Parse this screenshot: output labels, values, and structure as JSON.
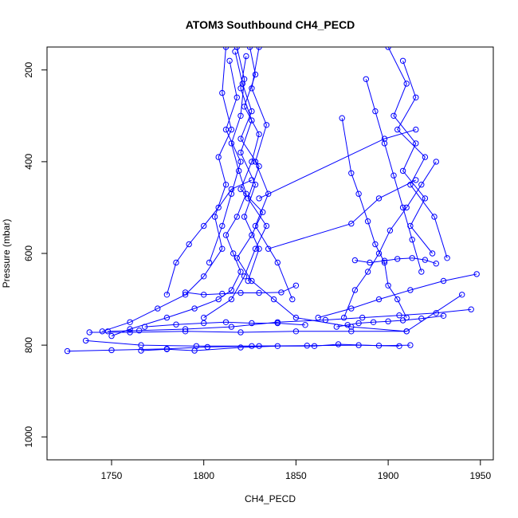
{
  "chart_data": {
    "type": "line",
    "title": "ATOM3 Southbound CH4_PECD",
    "xlabel": "CH4_PECD",
    "ylabel": "Pressure (mbar)",
    "xlim": [
      1715,
      1957
    ],
    "ylim": [
      1050,
      150
    ],
    "y_reversed": true,
    "xticks": [
      1750,
      1800,
      1850,
      1900,
      1950
    ],
    "yticks": [
      200,
      400,
      600,
      800,
      1000
    ],
    "grid": false,
    "legend": "none",
    "marker": "open-circle",
    "color": "#0000ff",
    "series": [
      {
        "x": [
          1818,
          1822,
          1820,
          1815,
          1819,
          1823,
          1818,
          1812,
          1816,
          1820,
          1815,
          1808,
          1795,
          1780,
          1760,
          1750
        ],
        "y": [
          150,
          220,
          300,
          360,
          420,
          470,
          520,
          560,
          600,
          640,
          680,
          700,
          720,
          740,
          765,
          780
        ]
      },
      {
        "x": [
          1825,
          1828,
          1822,
          1830,
          1826,
          1820,
          1832,
          1826,
          1818,
          1826,
          1838,
          1850,
          1880,
          1910
        ],
        "y": [
          150,
          210,
          280,
          340,
          400,
          460,
          510,
          560,
          610,
          660,
          700,
          740,
          760,
          770
        ]
      },
      {
        "x": [
          1812,
          1810,
          1815,
          1808,
          1812,
          1806,
          1810,
          1800,
          1790,
          1775,
          1760,
          1745
        ],
        "y": [
          150,
          250,
          330,
          390,
          450,
          520,
          590,
          650,
          690,
          720,
          750,
          770
        ]
      },
      {
        "x": [
          1830,
          1826,
          1834,
          1828,
          1835,
          1828,
          1840,
          1848
        ],
        "y": [
          150,
          240,
          320,
          400,
          470,
          540,
          620,
          700
        ]
      },
      {
        "x": [
          1817,
          1821,
          1826,
          1820,
          1830,
          1824,
          1834,
          1828,
          1822,
          1815,
          1800
        ],
        "y": [
          160,
          230,
          290,
          350,
          410,
          480,
          540,
          590,
          650,
          700,
          740
        ]
      },
      {
        "x": [
          1826,
          1815,
          1808,
          1800,
          1792,
          1785,
          1780
        ],
        "y": [
          440,
          460,
          500,
          540,
          580,
          620,
          690
        ]
      },
      {
        "x": [
          1814,
          1818,
          1812,
          1820,
          1815,
          1810,
          1803
        ],
        "y": [
          180,
          260,
          330,
          400,
          470,
          540,
          620
        ]
      },
      {
        "x": [
          1823,
          1820,
          1826,
          1820,
          1828,
          1822,
          1830,
          1824
        ],
        "y": [
          170,
          240,
          310,
          380,
          450,
          520,
          590,
          660
        ]
      },
      {
        "x": [
          1830,
          1898,
          1915
        ],
        "y": [
          480,
          350,
          330
        ]
      },
      {
        "x": [
          1835,
          1880,
          1895,
          1915
        ],
        "y": [
          590,
          535,
          480,
          440
        ]
      },
      {
        "x": [
          1900,
          1910,
          1903,
          1915,
          1908,
          1920,
          1912,
          1924
        ],
        "y": [
          150,
          230,
          300,
          360,
          420,
          480,
          540,
          600
        ]
      },
      {
        "x": [
          1875,
          1880,
          1884,
          1889,
          1893,
          1898,
          1900,
          1905,
          1910
        ],
        "y": [
          305,
          425,
          470,
          530,
          580,
          620,
          670,
          700,
          740
        ]
      },
      {
        "x": [
          1908,
          1915,
          1905,
          1920,
          1912,
          1925,
          1932
        ],
        "y": [
          180,
          260,
          330,
          390,
          450,
          520,
          610
        ]
      },
      {
        "x": [
          1888,
          1893,
          1898,
          1903,
          1908,
          1913,
          1918
        ],
        "y": [
          220,
          290,
          360,
          430,
          500,
          570,
          640
        ]
      },
      {
        "x": [
          1926,
          1918,
          1910,
          1901,
          1895,
          1889,
          1882,
          1876
        ],
        "y": [
          400,
          450,
          500,
          550,
          600,
          640,
          680,
          740
        ]
      },
      {
        "x": [
          1948,
          1930,
          1912,
          1895,
          1880,
          1862
        ],
        "y": [
          645,
          660,
          680,
          700,
          720,
          740
        ]
      },
      {
        "x": [
          1945,
          1926,
          1906,
          1886,
          1866,
          1840,
          1815,
          1790,
          1765,
          1748
        ],
        "y": [
          722,
          730,
          735,
          740,
          745,
          750,
          760,
          765,
          768,
          770
        ]
      },
      {
        "x": [
          1738,
          1760,
          1790,
          1820,
          1850,
          1880,
          1910,
          1940
        ],
        "y": [
          772,
          772,
          770,
          772,
          770,
          770,
          770,
          690
        ]
      },
      {
        "x": [
          1736,
          1766,
          1796,
          1826,
          1856,
          1884,
          1906
        ],
        "y": [
          790,
          800,
          802,
          802,
          801,
          800,
          802
        ]
      },
      {
        "x": [
          1726,
          1750,
          1780,
          1802,
          1830,
          1860,
          1873,
          1895,
          1912
        ],
        "y": [
          813,
          811,
          808,
          804,
          802,
          802,
          798,
          801,
          800
        ]
      },
      {
        "x": [
          1766,
          1780,
          1795,
          1820,
          1840
        ],
        "y": [
          812,
          809,
          812,
          805,
          802
        ]
      },
      {
        "x": [
          1790,
          1800,
          1810,
          1820,
          1830,
          1842,
          1850
        ],
        "y": [
          685,
          690,
          688,
          686,
          686,
          685,
          670
        ]
      },
      {
        "x": [
          1768,
          1785,
          1800,
          1812,
          1826,
          1840,
          1855
        ],
        "y": [
          760,
          755,
          752,
          750,
          752,
          752,
          756
        ]
      },
      {
        "x": [
          1882,
          1890,
          1898,
          1905,
          1913,
          1920,
          1926
        ],
        "y": [
          615,
          620,
          616,
          612,
          610,
          614,
          622
        ]
      },
      {
        "x": [
          1872,
          1878,
          1884,
          1892,
          1900,
          1908,
          1918,
          1930
        ],
        "y": [
          760,
          756,
          752,
          750,
          748,
          746,
          742,
          736
        ]
      }
    ]
  }
}
